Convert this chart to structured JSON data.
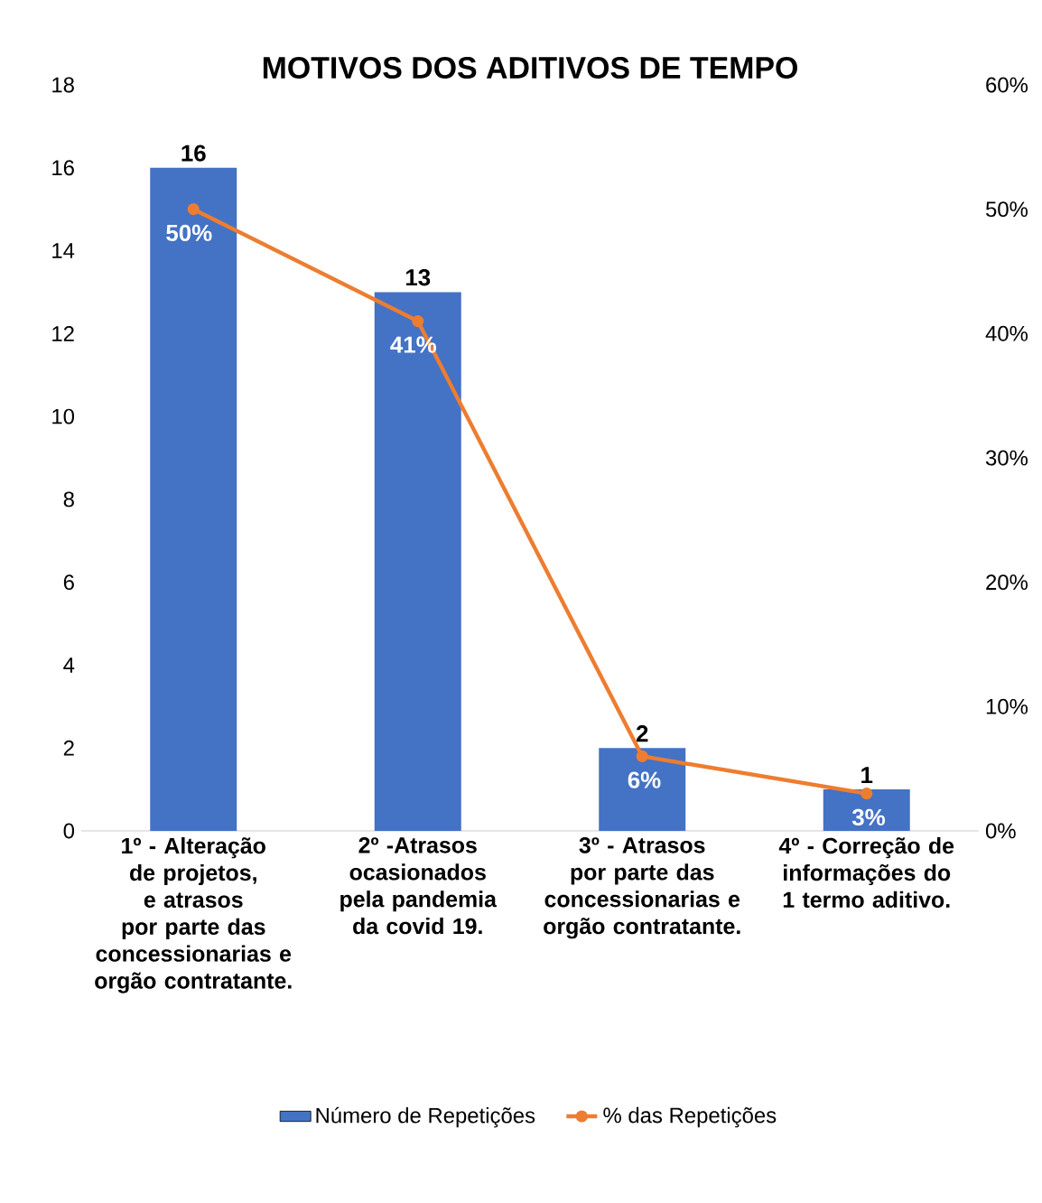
{
  "chart_data": {
    "type": "bar",
    "title": "MOTIVOS DOS ADITIVOS DE TEMPO",
    "categories": [
      "1º - Alteração de projetos, e atrasos por parte das concessionarias e orgão contratante.",
      "2º -Atrasos ocasionados pela pandemia da covid 19.",
      "3º - Atrasos por parte das concessionarias e orgão contratante.",
      "4º - Correção de informações do 1 termo aditivo."
    ],
    "series": [
      {
        "name": "Número de Repetições",
        "color": "#4472c4",
        "values": [
          16,
          13,
          2,
          1
        ],
        "value_labels": [
          "16",
          "13",
          "2",
          "1"
        ]
      },
      {
        "name": "% das Repetições",
        "type": "line",
        "axis": "y2",
        "color": "#ed7d31",
        "marker": "circle",
        "values": [
          50,
          41,
          6,
          3
        ],
        "value_labels": [
          "50%",
          "41%",
          "6%",
          "3%"
        ]
      }
    ],
    "ylim": [
      0,
      18
    ],
    "yticks": [
      0,
      2,
      4,
      6,
      8,
      10,
      12,
      14,
      16,
      18
    ],
    "y2lim": [
      0,
      60
    ],
    "y2ticks": [
      {
        "value": 0,
        "label": "0%"
      },
      {
        "value": 10,
        "label": "10%"
      },
      {
        "value": 20,
        "label": "20%"
      },
      {
        "value": 30,
        "label": "30%"
      },
      {
        "value": 40,
        "label": "40%"
      },
      {
        "value": 50,
        "label": "50%"
      },
      {
        "value": 60,
        "label": "60%"
      }
    ],
    "legend": "bottom"
  }
}
